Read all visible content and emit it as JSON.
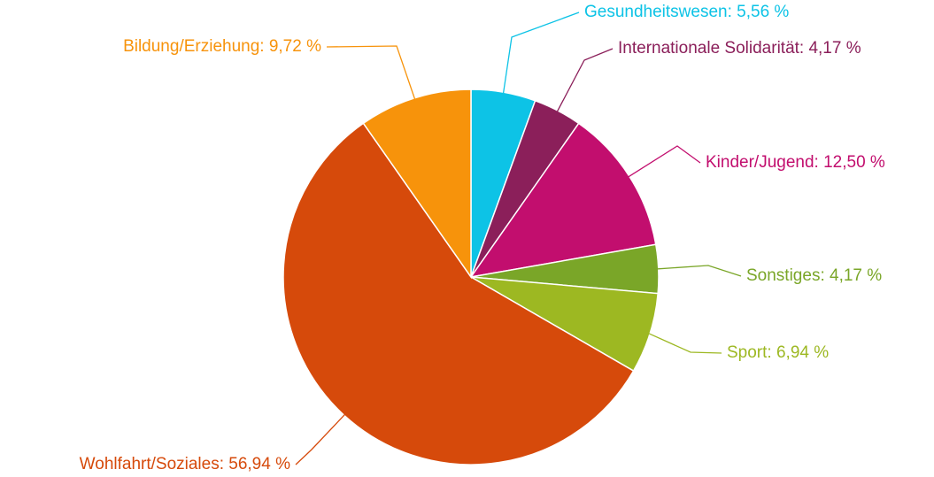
{
  "chart_data": {
    "type": "pie",
    "labels": [
      "Gesundheitswesen: 5,56 %",
      "Internationale Solidarität: 4,17 %",
      "Kinder/Jugend: 12,50 %",
      "Sonstiges: 4,17 %",
      "Sport: 6,94 %",
      "Wohlfahrt/Soziales: 56,94 %",
      "Bildung/Erziehung: 9,72 %"
    ],
    "values": [
      5.56,
      4.17,
      12.5,
      4.17,
      6.94,
      56.94,
      9.72
    ],
    "colors": [
      "#0dc3e6",
      "#8b1f5a",
      "#c20e6e",
      "#7aa628",
      "#9db822",
      "#d64a0b",
      "#f7930b"
    ]
  }
}
